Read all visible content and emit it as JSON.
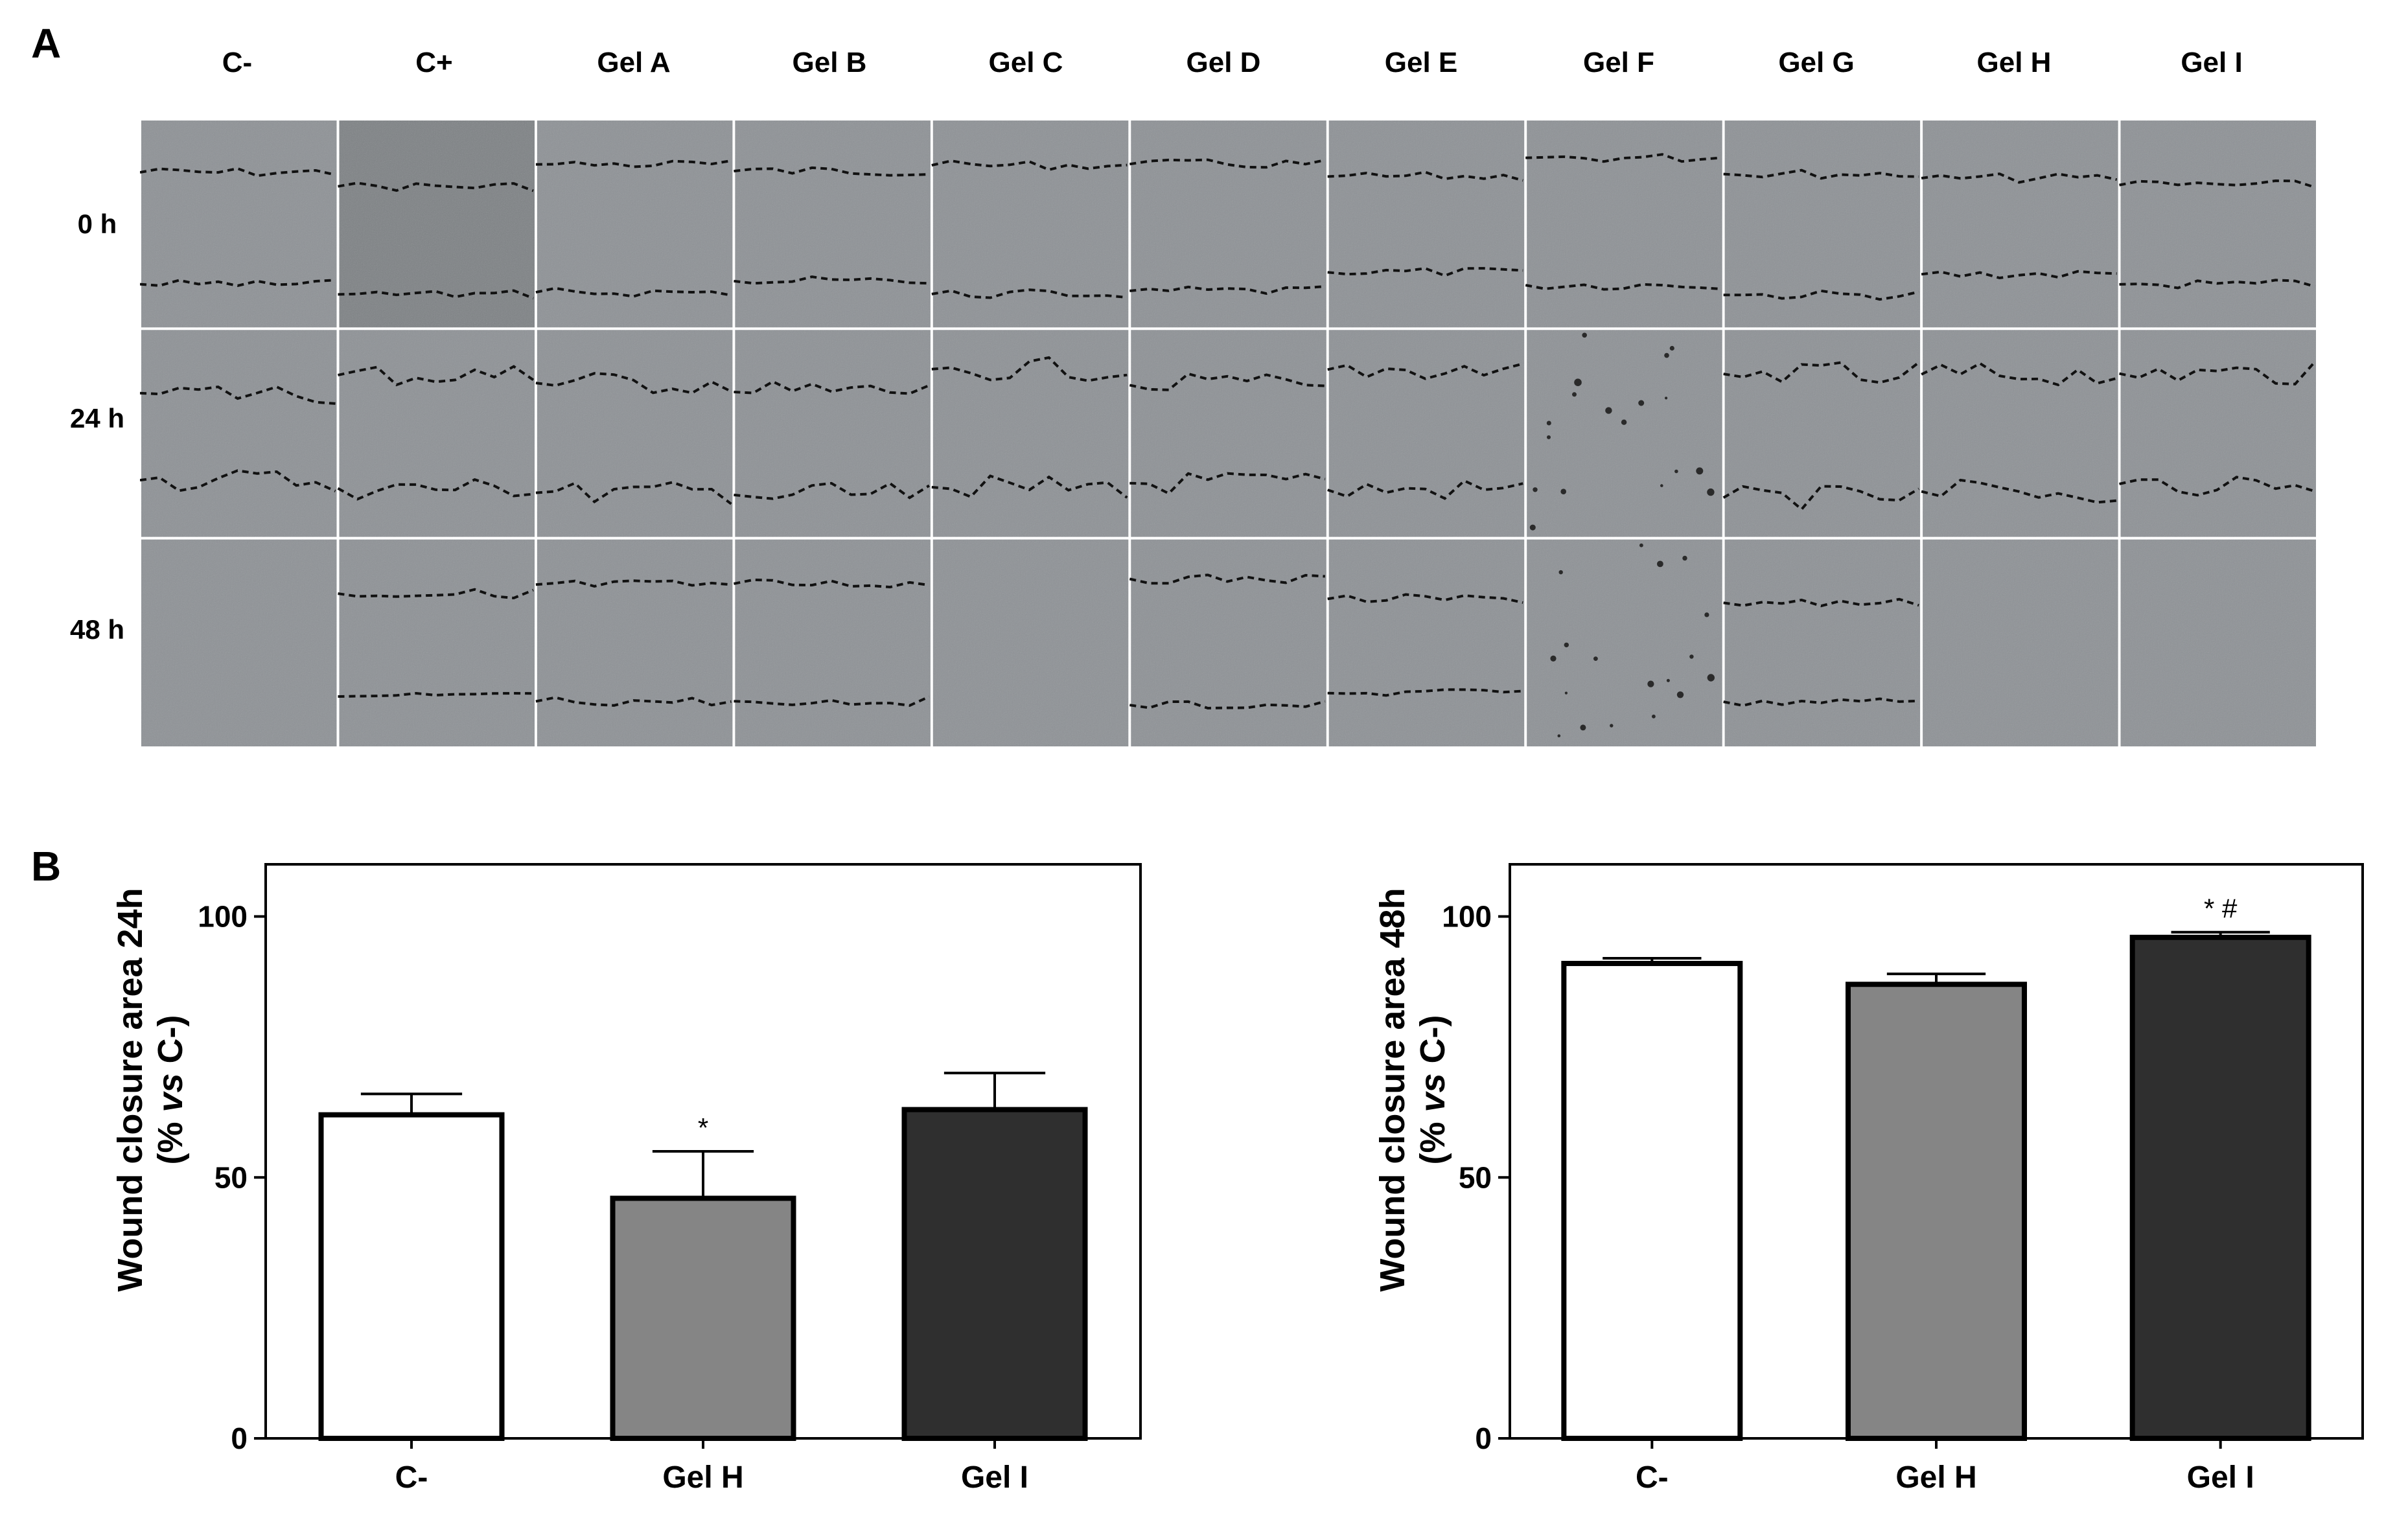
{
  "panels": {
    "a_label": "A",
    "b_label": "B"
  },
  "grid": {
    "columns": [
      "C-",
      "C+",
      "Gel A",
      "Gel B",
      "Gel C",
      "Gel D",
      "Gel E",
      "Gel F",
      "Gel G",
      "Gel H",
      "Gel I"
    ],
    "rows": [
      "0 h",
      "24 h",
      "48 h"
    ],
    "colors": {
      "tile_gray": "#8e9296",
      "tile_dark": "#7e8285",
      "wound_line": "#111111"
    }
  },
  "chart_data": [
    {
      "type": "bar",
      "categories": [
        "C-",
        "Gel H",
        "Gel I"
      ],
      "values": [
        62,
        46,
        63
      ],
      "errors": [
        4,
        9,
        7
      ],
      "annotations": [
        "",
        "*",
        ""
      ],
      "colors": [
        "#ffffff",
        "#858585",
        "#2f2f2f"
      ],
      "ylabel_line1": "Wound closure area 24h",
      "ylabel_line2_prefix": "(% ",
      "ylabel_line2_italic": "vs",
      "ylabel_line2_suffix": " C-)",
      "ylim": [
        0,
        110
      ],
      "yticks": [
        0,
        50,
        100
      ]
    },
    {
      "type": "bar",
      "categories": [
        "C-",
        "Gel H",
        "Gel I"
      ],
      "values": [
        91,
        87,
        96
      ],
      "errors": [
        1,
        2,
        1
      ],
      "annotations": [
        "",
        "",
        "*  #"
      ],
      "colors": [
        "#ffffff",
        "#858585",
        "#2f2f2f"
      ],
      "ylabel_line1": "Wound closure area 48h",
      "ylabel_line2_prefix": "(% ",
      "ylabel_line2_italic": "vs",
      "ylabel_line2_suffix": " C-)",
      "ylim": [
        0,
        110
      ],
      "yticks": [
        0,
        50,
        100
      ]
    }
  ]
}
